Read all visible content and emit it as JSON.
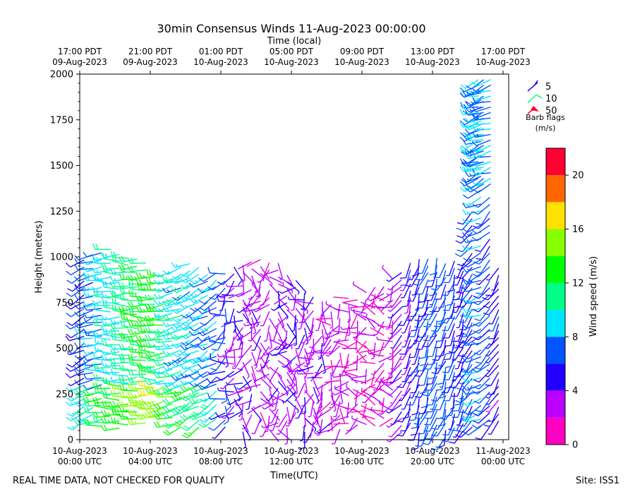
{
  "chart_data": {
    "type": "wind_barb",
    "title": "30min Consensus Winds 11-Aug-2023 00:00:00",
    "top_axis_label": "Time (local)",
    "top_ticks": [
      {
        "line1": "17:00 PDT",
        "line2": "09-Aug-2023",
        "utc_hours": 0
      },
      {
        "line1": "21:00 PDT",
        "line2": "09-Aug-2023",
        "utc_hours": 4
      },
      {
        "line1": "01:00 PDT",
        "line2": "10-Aug-2023",
        "utc_hours": 8
      },
      {
        "line1": "05:00 PDT",
        "line2": "10-Aug-2023",
        "utc_hours": 12
      },
      {
        "line1": "09:00 PDT",
        "line2": "10-Aug-2023",
        "utc_hours": 16
      },
      {
        "line1": "13:00 PDT",
        "line2": "10-Aug-2023",
        "utc_hours": 20
      },
      {
        "line1": "17:00 PDT",
        "line2": "10-Aug-2023",
        "utc_hours": 24
      }
    ],
    "xlabel": "Time(UTC)",
    "x_ticks": [
      {
        "line1": "10-Aug-2023",
        "line2": "00:00 UTC",
        "hours": 0
      },
      {
        "line1": "10-Aug-2023",
        "line2": "04:00 UTC",
        "hours": 4
      },
      {
        "line1": "10-Aug-2023",
        "line2": "08:00 UTC",
        "hours": 8
      },
      {
        "line1": "10-Aug-2023",
        "line2": "12:00 UTC",
        "hours": 12
      },
      {
        "line1": "10-Aug-2023",
        "line2": "16:00 UTC",
        "hours": 16
      },
      {
        "line1": "10-Aug-2023",
        "line2": "20:00 UTC",
        "hours": 20
      },
      {
        "line1": "11-Aug-2023",
        "line2": "00:00 UTC",
        "hours": 24
      }
    ],
    "xlim_hours": [
      0,
      24.3
    ],
    "ylabel": "Height (meters)",
    "ylim": [
      0,
      2000
    ],
    "y_ticks": [
      0,
      250,
      500,
      750,
      1000,
      1250,
      1500,
      1750,
      2000
    ],
    "colorbar": {
      "label": "Wind speed (m/s)",
      "min": 0,
      "max": 22,
      "ticks": [
        0,
        4,
        8,
        12,
        16,
        20
      ],
      "bins": [
        {
          "from": 0,
          "to": 2,
          "color": "#ff00c0"
        },
        {
          "from": 2,
          "to": 4,
          "color": "#bb00ff"
        },
        {
          "from": 4,
          "to": 6,
          "color": "#2200ff"
        },
        {
          "from": 6,
          "to": 8,
          "color": "#0055ff"
        },
        {
          "from": 8,
          "to": 10,
          "color": "#00e5ff"
        },
        {
          "from": 10,
          "to": 12,
          "color": "#00ff88"
        },
        {
          "from": 12,
          "to": 14,
          "color": "#00ff00"
        },
        {
          "from": 14,
          "to": 16,
          "color": "#88ff00"
        },
        {
          "from": 16,
          "to": 18,
          "color": "#ffe000"
        },
        {
          "from": 18,
          "to": 20,
          "color": "#ff6600"
        },
        {
          "from": 20,
          "to": 22,
          "color": "#ff0033"
        }
      ]
    },
    "barb_legend": {
      "title_line1": "Barb flags",
      "title_line2": "(m/s)",
      "entries": [
        {
          "label": "5",
          "color": "#2200ff"
        },
        {
          "label": "10",
          "color": "#00ff88"
        },
        {
          "label": "50",
          "color": "#ff0033"
        }
      ]
    },
    "series_sampled": [
      {
        "t_hours": 0.3,
        "height_top": 1000,
        "speed": 6,
        "dir_deg": 240
      },
      {
        "t_hours": 1.5,
        "height_top": 1070,
        "speed": 9,
        "dir_deg": 270
      },
      {
        "t_hours": 2.5,
        "height_top": 1010,
        "speed": 10,
        "dir_deg": 270
      },
      {
        "t_hours": 3.5,
        "height_top": 1000,
        "speed": 12,
        "dir_deg": 270
      },
      {
        "t_hours": 4.5,
        "height_top": 900,
        "speed": 13,
        "dir_deg": 270
      },
      {
        "t_hours": 5.5,
        "height_top": 960,
        "speed": 9,
        "dir_deg": 250
      },
      {
        "t_hours": 6.5,
        "height_top": 1000,
        "speed": 9,
        "dir_deg": 240
      },
      {
        "t_hours": 7.5,
        "height_top": 900,
        "speed": 8,
        "dir_deg": 240
      },
      {
        "t_hours": 8.5,
        "height_top": 950,
        "speed": 5,
        "dir_deg": 220
      },
      {
        "t_hours": 9.5,
        "height_top": 980,
        "speed": 3,
        "dir_deg": 200
      },
      {
        "t_hours": 11,
        "height_top": 1010,
        "speed": 3,
        "dir_deg": 180
      },
      {
        "t_hours": 12.5,
        "height_top": 860,
        "speed": 4,
        "dir_deg": 200
      },
      {
        "t_hours": 14,
        "height_top": 740,
        "speed": 3,
        "dir_deg": 220
      },
      {
        "t_hours": 16,
        "height_top": 810,
        "speed": 2,
        "dir_deg": 250
      },
      {
        "t_hours": 17.5,
        "height_top": 870,
        "speed": 2,
        "dir_deg": 260
      },
      {
        "t_hours": 18.8,
        "height_top": 1000,
        "speed": 5,
        "dir_deg": 200
      },
      {
        "t_hours": 20.5,
        "height_top": 1010,
        "speed": 7,
        "dir_deg": 200
      },
      {
        "t_hours": 22,
        "height_top": 960,
        "speed": 5,
        "dir_deg": 200
      },
      {
        "t_hours": 22.8,
        "height_top": 2000,
        "speed": 8,
        "dir_deg": 250
      },
      {
        "t_hours": 23.5,
        "height_top": 960,
        "speed": 5,
        "dir_deg": 210
      }
    ]
  },
  "footer": {
    "left": "REAL TIME DATA, NOT CHECKED FOR QUALITY",
    "right": "Site: ISS1"
  }
}
